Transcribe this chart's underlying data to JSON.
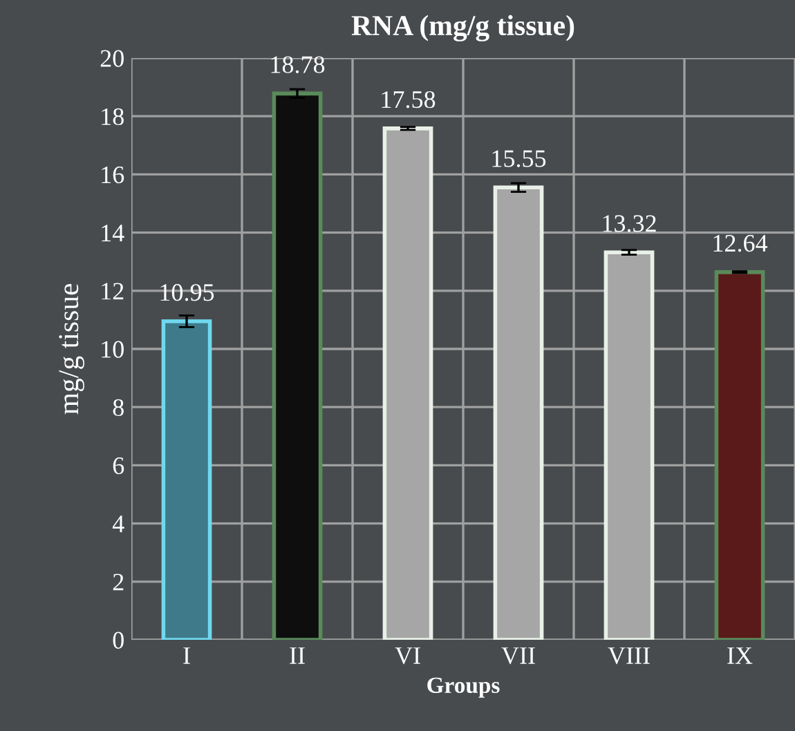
{
  "chart_data": {
    "type": "bar",
    "title": "RNA (mg/g tissue)",
    "xlabel": "Groups",
    "ylabel": "mg/g tissue",
    "categories": [
      "I",
      "II",
      "VI",
      "VII",
      "VIII",
      "IX"
    ],
    "values": [
      10.95,
      18.78,
      17.58,
      15.55,
      13.32,
      12.64
    ],
    "errors": [
      0.2,
      0.15,
      0.05,
      0.15,
      0.08,
      0.03
    ],
    "colors": [
      "#3e7a8a",
      "#0e0e0e",
      "#a6a6a6",
      "#a6a6a6",
      "#a6a6a6",
      "#5a1a1a"
    ],
    "data_labels": true,
    "ylim": [
      0,
      20
    ],
    "yticks": [
      0,
      2,
      4,
      6,
      8,
      10,
      12,
      14,
      16,
      18,
      20
    ],
    "grid": true
  }
}
